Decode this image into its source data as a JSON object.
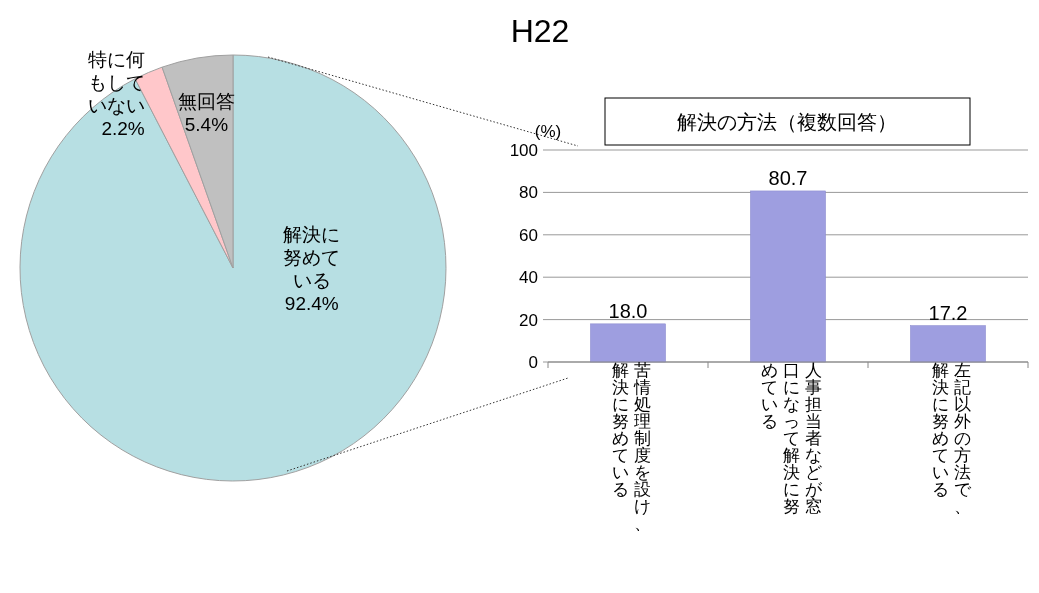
{
  "chart_data": [
    {
      "type": "pie",
      "title": "H22",
      "categories": [
        "解決に努めている",
        "特に何もしていない",
        "無回答"
      ],
      "values": [
        92.4,
        2.2,
        5.4
      ],
      "value_labels": [
        "92.4%",
        "2.2%",
        "5.4%"
      ],
      "colors": [
        "#b7dfe3",
        "#ffc7ca",
        "#c0c0c0"
      ]
    },
    {
      "type": "bar",
      "title": "解決の方法（複数回答）",
      "ylabel": "(%)",
      "categories": [
        "苦情処理制度を設け、解決に努めている",
        "人事担当者などが窓口になって解決に努めている",
        "左記以外の方法で、解決に努めている"
      ],
      "values": [
        18.0,
        80.7,
        17.2
      ],
      "value_labels": [
        "18.0",
        "80.7",
        "17.2"
      ],
      "color": "#9e9ee0",
      "ylim": [
        0,
        100
      ],
      "yticks": [
        0,
        20,
        40,
        60,
        80,
        100
      ],
      "grid": "y"
    }
  ]
}
